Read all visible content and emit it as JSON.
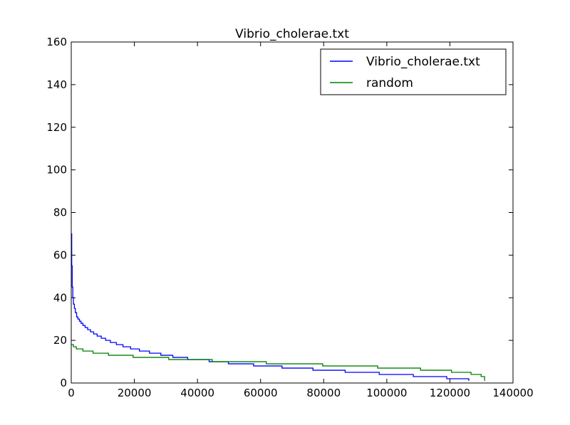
{
  "chart_data": {
    "type": "line",
    "title": "Vibrio_cholerae.txt",
    "xlabel": "",
    "ylabel": "",
    "xlim": [
      0,
      140000
    ],
    "ylim": [
      0,
      160
    ],
    "xticks": [
      0,
      20000,
      40000,
      60000,
      80000,
      100000,
      120000,
      140000
    ],
    "xtick_labels": [
      "0",
      "20000",
      "40000",
      "60000",
      "80000",
      "100000",
      "120000",
      "140000"
    ],
    "yticks": [
      0,
      20,
      40,
      60,
      80,
      100,
      120,
      140,
      160
    ],
    "ytick_labels": [
      "0",
      "20",
      "40",
      "60",
      "80",
      "100",
      "120",
      "140",
      "160"
    ],
    "grid": false,
    "legend_position": "top-right",
    "series": [
      {
        "name": "Vibrio_cholerae.txt",
        "color": "#0000ff",
        "step": true,
        "x": [
          0,
          150,
          300,
          500,
          700,
          1000,
          1300,
          1700,
          2100,
          2600,
          3100,
          3700,
          4400,
          5200,
          6100,
          7100,
          8200,
          9500,
          10900,
          12400,
          14300,
          16400,
          18800,
          21600,
          24800,
          28400,
          32200,
          36900,
          43700,
          49800,
          57800,
          66800,
          76600,
          86800,
          97600,
          108400,
          119000,
          126000
        ],
        "y": [
          70,
          55,
          45,
          40,
          37,
          35,
          33,
          31,
          30,
          29,
          28,
          27,
          26,
          25,
          24,
          23,
          22,
          21,
          20,
          19,
          18,
          17,
          16,
          15,
          14,
          13,
          12,
          11,
          10,
          9,
          8,
          7,
          6,
          5,
          4,
          3,
          2,
          1
        ]
      },
      {
        "name": "random",
        "color": "#008000",
        "step": true,
        "x": [
          0,
          700,
          1600,
          3700,
          6900,
          11800,
          19600,
          30900,
          44700,
          61800,
          79700,
          97100,
          110700,
          120500,
          126700,
          129900,
          131000
        ],
        "y": [
          18,
          17,
          16,
          15,
          14,
          13,
          12,
          11,
          10,
          9,
          8,
          7,
          6,
          5,
          4,
          3,
          1
        ]
      }
    ]
  }
}
